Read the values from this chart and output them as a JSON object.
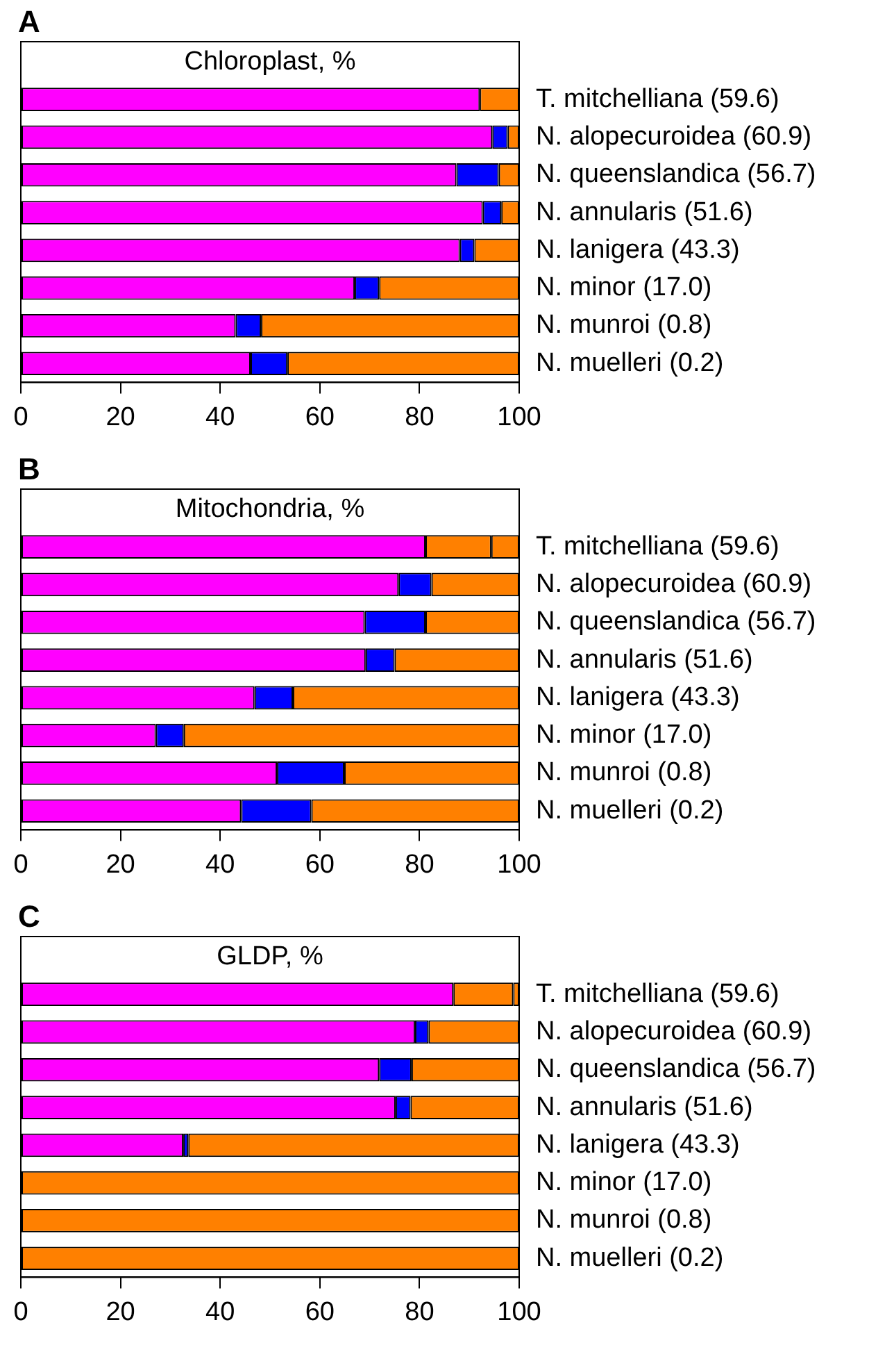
{
  "chart_data": [
    {
      "type": "bar",
      "orientation": "horizontal",
      "stacked": true,
      "title": "Chloroplast, %",
      "annotations": [
        "A"
      ],
      "categories": [
        "T. mitchelliana (59.6)",
        "N. alopecuroidea (60.9)",
        "N. queenslandica (56.7)",
        "N. annularis (51.6)",
        "N. lanigera (43.3)",
        "N. minor (17.0)",
        "N. munroi (0.8)",
        "N. muelleri (0.2)"
      ],
      "xlim": [
        0,
        100
      ],
      "xticks": [
        0,
        20,
        40,
        60,
        80,
        100
      ],
      "grid": false,
      "legend": false,
      "series": [
        {
          "color": "#ff00ff",
          "values": [
            92.1,
            94.6,
            87.4,
            92.7,
            88.1,
            67.0,
            43.1,
            46.1
          ]
        },
        {
          "color": "#0000ff",
          "values": [
            0,
            3.1,
            8.5,
            3.7,
            2.9,
            4.9,
            5.1,
            7.4
          ]
        },
        {
          "color": "#ff8000",
          "values": [
            7.9,
            2.3,
            4.1,
            3.6,
            9.0,
            28.1,
            51.8,
            46.5
          ]
        }
      ]
    },
    {
      "type": "bar",
      "orientation": "horizontal",
      "stacked": true,
      "title": "Mitochondria, %",
      "annotations": [
        "B"
      ],
      "categories": [
        "T. mitchelliana (59.6)",
        "N. alopecuroidea (60.9)",
        "N. queenslandica (56.7)",
        "N. annularis (51.6)",
        "N. lanigera (43.3)",
        "N. minor (17.0)",
        "N. munroi (0.8)",
        "N. muelleri (0.2)"
      ],
      "xlim": [
        0,
        100
      ],
      "xticks": [
        0,
        20,
        40,
        60,
        80,
        100
      ],
      "grid": false,
      "legend": false,
      "series": [
        {
          "color": "#ff00ff",
          "values": [
            81.2,
            75.8,
            69.0,
            69.2,
            46.9,
            27.1,
            51.4,
            44.2
          ]
        },
        {
          "color": "#0000ff",
          "values": [
            0,
            6.6,
            12.2,
            5.8,
            7.7,
            5.6,
            13.5,
            14.1
          ]
        },
        {
          "color": "#ff8000",
          "values": [
            13.2,
            17.6,
            18.8,
            25.0,
            45.4,
            67.3,
            35.1,
            41.7
          ]
        },
        {
          "color": "#ff8000",
          "values": [
            5.6,
            0,
            0,
            0,
            0,
            0,
            0,
            0
          ]
        }
      ]
    },
    {
      "type": "bar",
      "orientation": "horizontal",
      "stacked": true,
      "title": "GLDP, %",
      "annotations": [
        "C"
      ],
      "categories": [
        "T. mitchelliana (59.6)",
        "N. alopecuroidea (60.9)",
        "N. queenslandica (56.7)",
        "N. annularis (51.6)",
        "N. lanigera (43.3)",
        "N. minor (17.0)",
        "N. munroi (0.8)",
        "N. muelleri (0.2)"
      ],
      "xlim": [
        0,
        100
      ],
      "xticks": [
        0,
        20,
        40,
        60,
        80,
        100
      ],
      "grid": false,
      "legend": false,
      "series": [
        {
          "color": "#ff00ff",
          "values": [
            86.8,
            79.1,
            71.9,
            75.2,
            32.6,
            0,
            0,
            0
          ]
        },
        {
          "color": "#0000ff",
          "values": [
            0,
            2.7,
            6.5,
            3.0,
            1.0,
            0,
            0,
            0
          ]
        },
        {
          "color": "#ff8000",
          "values": [
            12.0,
            18.2,
            21.6,
            21.8,
            66.4,
            100,
            100,
            100
          ]
        },
        {
          "color": "#ff8000",
          "values": [
            1.2,
            0,
            0,
            0,
            0,
            0,
            0,
            0
          ]
        }
      ]
    }
  ]
}
